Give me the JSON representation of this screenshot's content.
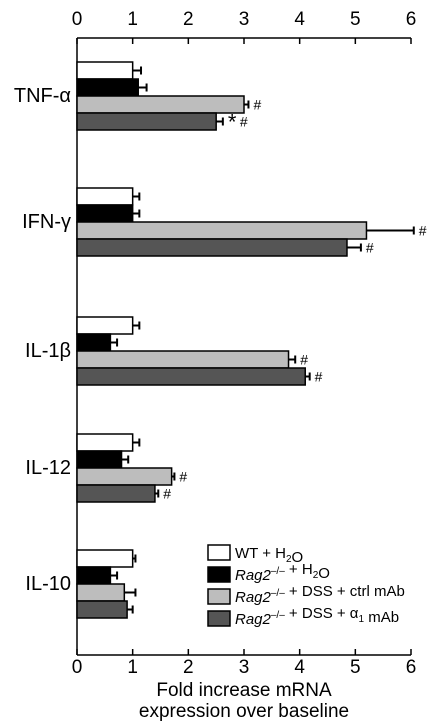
{
  "chart_data": {
    "type": "bar",
    "orientation": "horizontal",
    "xlabel_line1": "Fold increase mRNA",
    "xlabel_line2": "expression over baseline",
    "xlim": [
      0,
      6
    ],
    "xticks": [
      "0",
      "1",
      "2",
      "3",
      "4",
      "5",
      "6"
    ],
    "categories": [
      "TNF-α",
      "IFN-γ",
      "IL-1β",
      "IL-12",
      "IL-10"
    ],
    "legend_position": "bottom-right",
    "series": [
      {
        "name_plain": "WT + H",
        "name_sub": "2",
        "name_rest": "O",
        "color": "#ffffff",
        "values": [
          1.0,
          1.0,
          1.0,
          1.0,
          1.0
        ],
        "errors": [
          0.15,
          0.12,
          0.12,
          0.12,
          0.05
        ],
        "markers": [
          "",
          "",
          "",
          "",
          ""
        ]
      },
      {
        "name_italic": "Rag2",
        "name_sup": "–/–",
        "name_plain": " + H",
        "name_sub": "2",
        "name_rest": "O",
        "color": "#000000",
        "values": [
          1.1,
          1.0,
          0.6,
          0.8,
          0.6
        ],
        "errors": [
          0.15,
          0.12,
          0.12,
          0.12,
          0.12
        ],
        "markers": [
          "",
          "",
          "",
          "",
          ""
        ]
      },
      {
        "name_italic": "Rag2",
        "name_sup": "–/–",
        "name_plain": " + DSS + ctrl mAb",
        "color": "#bdbdbd",
        "values": [
          3.0,
          5.2,
          3.8,
          1.7,
          0.85
        ],
        "errors": [
          0.08,
          0.85,
          0.12,
          0.05,
          0.2
        ],
        "markers": [
          "#",
          "#",
          "#",
          "#",
          ""
        ]
      },
      {
        "name_italic": "Rag2",
        "name_sup": "–/–",
        "name_plain": " + DSS + α",
        "name_sub": "1",
        "name_rest": " mAb",
        "color": "#555555",
        "values": [
          2.5,
          4.85,
          4.1,
          1.4,
          0.9
        ],
        "errors": [
          0.12,
          0.25,
          0.08,
          0.06,
          0.1
        ],
        "markers": [
          "*#",
          "#",
          "#",
          "#",
          ""
        ]
      }
    ]
  }
}
